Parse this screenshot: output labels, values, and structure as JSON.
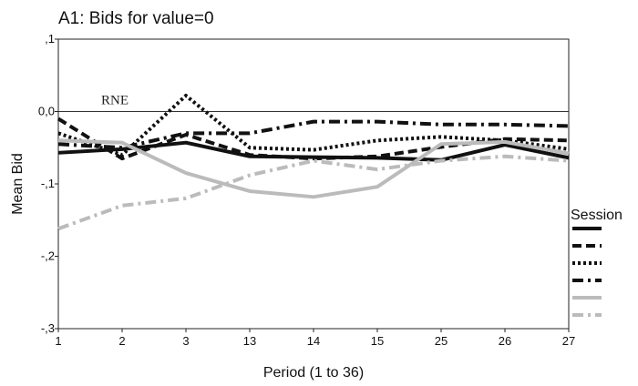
{
  "chart_data": {
    "type": "line",
    "title": "A1: Bids for value=0",
    "xlabel": "Period (1 to 36)",
    "ylabel": "Mean Bid",
    "categories": [
      "1",
      "2",
      "3",
      "13",
      "14",
      "15",
      "25",
      "26",
      "27"
    ],
    "ylim": [
      -0.3,
      0.1
    ],
    "yticks": [
      {
        "value": 0.1,
        "label": ",1"
      },
      {
        "value": 0.0,
        "label": "0,0"
      },
      {
        "value": -0.1,
        "label": "-,1"
      },
      {
        "value": -0.2,
        "label": "-,2"
      },
      {
        "value": -0.3,
        "label": "-,3"
      }
    ],
    "reference_line": {
      "value": 0.0,
      "label": "RNE"
    },
    "grid": false,
    "legend": {
      "title": "Session",
      "placement": "right"
    },
    "series": [
      {
        "values": [
          -0.057,
          -0.052,
          -0.043,
          -0.062,
          -0.063,
          -0.064,
          -0.067,
          -0.046,
          -0.064
        ],
        "color": "#111111",
        "dash": "solid"
      },
      {
        "values": [
          -0.01,
          -0.065,
          -0.032,
          -0.06,
          -0.065,
          -0.062,
          -0.049,
          -0.038,
          -0.04
        ],
        "color": "#111111",
        "dash": "dash"
      },
      {
        "values": [
          -0.03,
          -0.06,
          0.022,
          -0.05,
          -0.053,
          -0.04,
          -0.035,
          -0.04,
          -0.052
        ],
        "color": "#111111",
        "dash": "dot"
      },
      {
        "values": [
          -0.045,
          -0.05,
          -0.03,
          -0.03,
          -0.014,
          -0.014,
          -0.018,
          -0.018,
          -0.02
        ],
        "color": "#111111",
        "dash": "dashdot"
      },
      {
        "values": [
          -0.04,
          -0.043,
          -0.085,
          -0.11,
          -0.118,
          -0.104,
          -0.045,
          -0.042,
          -0.058
        ],
        "color": "#bbbbbb",
        "dash": "solid"
      },
      {
        "values": [
          -0.162,
          -0.13,
          -0.12,
          -0.088,
          -0.068,
          -0.08,
          -0.068,
          -0.062,
          -0.068
        ],
        "color": "#bbbbbb",
        "dash": "dashdot"
      }
    ]
  }
}
